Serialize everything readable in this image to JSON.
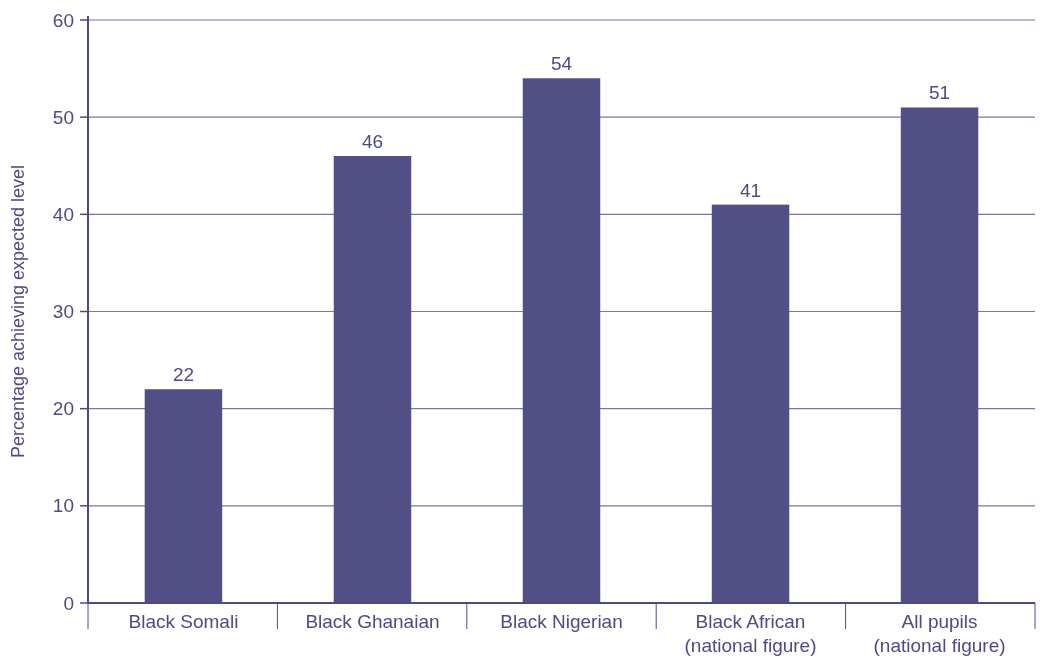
{
  "chart_data": {
    "type": "bar",
    "ylabel": "Percentage achieving expected level",
    "categories": [
      "Black Somali",
      "Black Ghanaian",
      "Black Nigerian",
      "Black African\n(national figure)",
      "All pupils\n(national figure)"
    ],
    "values": [
      22,
      46,
      54,
      41,
      51
    ],
    "color": "#524f87",
    "ylim": [
      0,
      60
    ],
    "yticks": [
      0,
      10,
      20,
      30,
      40,
      50,
      60
    ],
    "grid": "y",
    "data_labels": true
  }
}
